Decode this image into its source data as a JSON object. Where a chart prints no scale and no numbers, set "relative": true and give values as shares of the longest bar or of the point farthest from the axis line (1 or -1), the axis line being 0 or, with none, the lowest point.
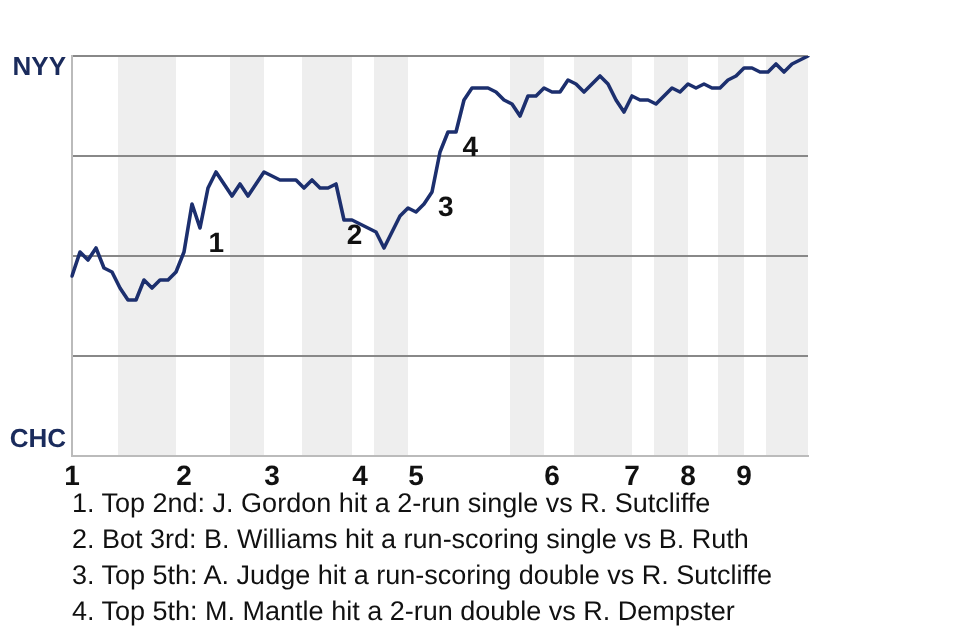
{
  "chart_data": {
    "type": "line",
    "relative": true,
    "categories": [
      "1",
      null,
      null,
      null,
      null,
      null,
      null,
      null,
      null,
      null,
      null,
      null,
      null,
      null,
      "2",
      null,
      null,
      null,
      null,
      null,
      null,
      null,
      null,
      null,
      null,
      "3",
      null,
      null,
      null,
      null,
      null,
      null,
      null,
      null,
      null,
      null,
      "4",
      null,
      null,
      null,
      null,
      null,
      null,
      "5",
      null,
      null,
      null,
      null,
      null,
      null,
      null,
      null,
      null,
      null,
      null,
      null,
      null,
      null,
      null,
      null,
      "6",
      null,
      null,
      null,
      null,
      null,
      null,
      null,
      null,
      null,
      "7",
      null,
      null,
      null,
      null,
      null,
      null,
      "8",
      null,
      null,
      null,
      null,
      null,
      null,
      "9",
      null,
      null,
      null,
      null,
      null,
      null,
      null,
      null
    ],
    "series": [
      {
        "color": "#1c2f6e",
        "values": [
          0.45,
          0.51,
          0.49,
          0.52,
          0.47,
          0.46,
          0.42,
          0.39,
          0.39,
          0.44,
          0.42,
          0.44,
          0.44,
          0.46,
          0.51,
          0.63,
          0.57,
          0.67,
          0.71,
          0.68,
          0.65,
          0.68,
          0.65,
          0.68,
          0.71,
          0.7,
          0.69,
          0.69,
          0.69,
          0.67,
          0.69,
          0.67,
          0.67,
          0.68,
          0.59,
          0.59,
          0.58,
          0.57,
          0.56,
          0.52,
          0.56,
          0.6,
          0.62,
          0.61,
          0.63,
          0.66,
          0.76,
          0.81,
          0.81,
          0.89,
          0.92,
          0.92,
          0.92,
          0.91,
          0.89,
          0.88,
          0.85,
          0.9,
          0.9,
          0.92,
          0.91,
          0.91,
          0.94,
          0.93,
          0.91,
          0.93,
          0.95,
          0.93,
          0.89,
          0.86,
          0.9,
          0.89,
          0.89,
          0.88,
          0.9,
          0.92,
          0.91,
          0.93,
          0.92,
          0.93,
          0.92,
          0.92,
          0.94,
          0.95,
          0.97,
          0.97,
          0.96,
          0.96,
          0.98,
          0.96,
          0.98,
          0.99,
          1
        ]
      }
    ],
    "grid": "y",
    "legend": false,
    "marker": "none",
    "line_style": "solid",
    "annotations": [
      "NYY",
      "CHC",
      "1",
      "2",
      "3",
      "4",
      "1. Top 2nd: J. Gordon hit a 2-run single vs R. Sutcliffe",
      "2. Bot 3rd: B. Williams hit a run-scoring single vs B. Ruth",
      "3. Top 5th: A. Judge hit a run-scoring double vs R. Sutcliffe",
      "4. Top 5th: M. Mantle hit a 2-run double vs R. Dempster"
    ]
  }
}
